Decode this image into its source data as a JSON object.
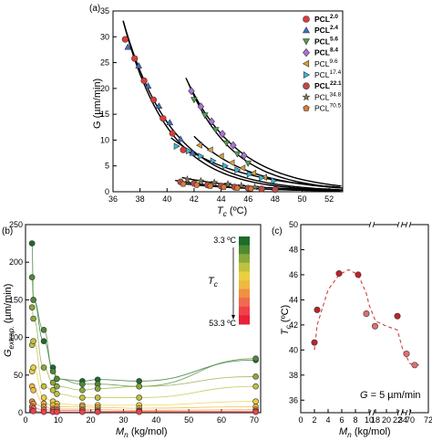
{
  "chart_data": [
    {
      "type": "scatter",
      "panel_label": "(a)",
      "xlabel": "T_c (ºC)",
      "ylabel": "G (µm/min)",
      "xlim": [
        36,
        53
      ],
      "ylim": [
        0,
        35
      ],
      "xticks": [
        36,
        38,
        40,
        42,
        44,
        46,
        48,
        50,
        52
      ],
      "yticks": [
        0,
        5,
        10,
        15,
        20,
        25,
        30,
        35
      ],
      "legend_position": "top-right",
      "series": [
        {
          "name": "PCL",
          "sup": "2.0",
          "bold": true,
          "marker": "circle",
          "color": "#e03a3a",
          "x": [
            36.9,
            37.6,
            38.3,
            39.0,
            39.7,
            40.4,
            41.2
          ],
          "y": [
            29.5,
            25.8,
            21.5,
            17.8,
            14.2,
            11.3,
            8.1
          ]
        },
        {
          "name": "PCL",
          "sup": "2.4",
          "bold": true,
          "marker": "triangle-up",
          "color": "#3a6fd0",
          "x": [
            37.1,
            37.9,
            38.6,
            39.4,
            40.2,
            41.0,
            41.9
          ],
          "y": [
            28.0,
            24.4,
            20.5,
            16.6,
            13.4,
            10.2,
            7.5
          ]
        },
        {
          "name": "PCL",
          "sup": "5.6",
          "bold": true,
          "marker": "triangle-down",
          "color": "#4fa055",
          "x": [
            42.0,
            42.8,
            43.6,
            44.4,
            45.2,
            46.0
          ],
          "y": [
            17.8,
            14.8,
            12.0,
            9.4,
            7.3,
            5.5
          ]
        },
        {
          "name": "PCL",
          "sup": "8.4",
          "bold": true,
          "marker": "diamond",
          "color": "#b070d8",
          "x": [
            41.8,
            42.5,
            43.3,
            44.1,
            44.9,
            45.7
          ],
          "y": [
            19.5,
            16.5,
            13.6,
            11.2,
            9.0,
            7.0
          ]
        },
        {
          "name": "PCL",
          "sup": "9.6",
          "bold": false,
          "marker": "triangle-left",
          "color": "#d8a23a",
          "x": [
            42.4,
            43.2,
            44.0,
            44.8,
            45.6,
            46.4,
            47.2
          ],
          "y": [
            9.0,
            8.1,
            6.9,
            5.6,
            4.6,
            3.6,
            2.8
          ]
        },
        {
          "name": "PCL",
          "sup": "17.4",
          "bold": false,
          "marker": "triangle-right",
          "color": "#3ab8d8",
          "x": [
            40.7,
            41.6,
            42.5,
            43.4,
            44.3,
            45.2,
            46.1,
            47.0,
            47.9
          ],
          "y": [
            8.8,
            7.9,
            6.9,
            6.0,
            5.0,
            4.2,
            3.4,
            2.7,
            2.1
          ]
        },
        {
          "name": "PCL",
          "sup": "22.1",
          "bold": true,
          "marker": "circle",
          "color": "#c04a4a",
          "x": [
            41.0,
            42.0,
            43.0,
            44.0,
            45.0,
            46.0,
            47.0,
            48.0
          ],
          "y": [
            1.9,
            1.6,
            1.3,
            1.1,
            0.9,
            0.7,
            0.55,
            0.4
          ]
        },
        {
          "name": "PCL",
          "sup": "34.8",
          "bold": false,
          "marker": "star",
          "color": "#8a7a4a",
          "x": [
            41.5,
            42.5,
            43.5,
            44.5,
            45.5,
            46.5
          ],
          "y": [
            2.4,
            2.1,
            1.8,
            1.5,
            1.2,
            0.9
          ]
        },
        {
          "name": "PCL",
          "sup": "70.5",
          "bold": false,
          "marker": "pentagon",
          "color": "#e07a30",
          "x": [
            41.2,
            42.2,
            43.2,
            44.2,
            45.2,
            46.2
          ],
          "y": [
            1.5,
            1.3,
            1.1,
            0.9,
            0.75,
            0.6
          ]
        }
      ]
    },
    {
      "type": "scatter",
      "panel_label": "(b)",
      "xlabel": "M_n (kg/mol)",
      "ylabel": "G_extrap. (µm/min)",
      "xlim": [
        0,
        72
      ],
      "ylim": [
        0,
        250
      ],
      "xticks": [
        0,
        10,
        20,
        30,
        40,
        50,
        60,
        70
      ],
      "yticks": [
        0,
        50,
        100,
        150,
        200,
        250
      ],
      "colorbar": {
        "top_label": "3.3 ºC",
        "bottom_label": "53.3 ºC",
        "label": "T_c",
        "colors": [
          "#1e6b2a",
          "#4e8a32",
          "#8aa83a",
          "#c0c040",
          "#e8d040",
          "#f0b840",
          "#f09040",
          "#f06a50",
          "#f0404a",
          "#e8203a"
        ]
      },
      "mn": [
        2.0,
        2.4,
        5.6,
        8.4,
        9.6,
        17.4,
        22.1,
        34.8,
        70.5
      ],
      "series": [
        {
          "color": "#1e6b2a",
          "y": [
            225,
            150,
            95,
            60,
            45,
            42,
            44,
            42,
            70
          ]
        },
        {
          "color": "#4e8a32",
          "y": [
            180,
            150,
            110,
            55,
            45,
            38,
            38,
            35,
            72
          ]
        },
        {
          "color": "#8aa83a",
          "y": [
            140,
            125,
            60,
            40,
            35,
            30,
            32,
            35,
            48
          ]
        },
        {
          "color": "#c0c040",
          "y": [
            90,
            95,
            35,
            30,
            25,
            20,
            20,
            20,
            35
          ]
        },
        {
          "color": "#e8d040",
          "y": [
            55,
            60,
            20,
            15,
            12,
            10,
            10,
            10,
            15
          ]
        },
        {
          "color": "#f0b840",
          "y": [
            35,
            30,
            12,
            10,
            8,
            8,
            7,
            6,
            8
          ]
        },
        {
          "color": "#f09040",
          "y": [
            15,
            12,
            8,
            5,
            5,
            5,
            4,
            3,
            4
          ]
        },
        {
          "color": "#f06a50",
          "y": [
            8,
            6,
            4,
            3,
            3,
            3,
            2,
            2,
            2
          ]
        },
        {
          "color": "#f0404a",
          "y": [
            3,
            2,
            1,
            1,
            1,
            1,
            1,
            1,
            1
          ]
        }
      ]
    },
    {
      "type": "scatter",
      "panel_label": "(c)",
      "xlabel": "M_n (kg/mol)",
      "ylabel": "T_c (ºC)",
      "ylim": [
        35,
        50
      ],
      "yticks": [
        36,
        38,
        40,
        42,
        44,
        46,
        48,
        50
      ],
      "xtick_labels": [
        "0",
        "2",
        "4",
        "6",
        "8",
        "10",
        "18",
        "20",
        "22",
        "34",
        "70",
        "72"
      ],
      "annotation": "G = 5 µm/min",
      "points": [
        {
          "mn": "2.0",
          "y": 40.6,
          "color": "#c0222a"
        },
        {
          "mn": "2.4",
          "y": 43.2,
          "color": "#c0222a"
        },
        {
          "mn": "5.6",
          "y": 46.1,
          "color": "#c0222a"
        },
        {
          "mn": "8.4",
          "y": 46.0,
          "color": "#c0222a"
        },
        {
          "mn": "9.6",
          "y": 42.9,
          "color": "#e07070"
        },
        {
          "mn": "17.4",
          "y": 41.9,
          "color": "#e07070"
        },
        {
          "mn": "22.1",
          "y": 42.7,
          "color": "#c0222a"
        },
        {
          "mn": "34.8",
          "y": 39.7,
          "color": "#e07070"
        },
        {
          "mn": "70.5",
          "y": 38.8,
          "color": "#e07070"
        }
      ]
    }
  ]
}
